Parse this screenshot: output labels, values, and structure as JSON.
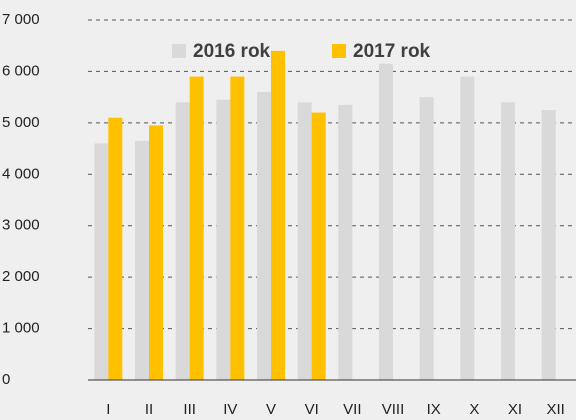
{
  "chart_data": {
    "type": "bar",
    "categories": [
      "I",
      "II",
      "III",
      "IV",
      "V",
      "VI",
      "VII",
      "VIII",
      "IX",
      "X",
      "XI",
      "XII"
    ],
    "series": [
      {
        "name": "2016 rok",
        "color": "#d9d9d9",
        "values": [
          4600,
          4650,
          5400,
          5450,
          5600,
          5400,
          5350,
          6150,
          5500,
          5900,
          5400,
          5250
        ]
      },
      {
        "name": "2017 rok",
        "color": "#ffc000",
        "values": [
          5100,
          4950,
          5900,
          5900,
          6400,
          5200,
          null,
          null,
          null,
          null,
          null,
          null
        ]
      }
    ],
    "ylim": [
      0,
      7000
    ],
    "yticks": [
      0,
      {
        "value": 1000,
        "label": "1 000"
      },
      {
        "value": 2000,
        "label": "2 000"
      },
      {
        "value": 3000,
        "label": "3 000"
      },
      {
        "value": 4000,
        "label": "4 000"
      },
      {
        "value": 5000,
        "label": "5 000"
      },
      {
        "value": 6000,
        "label": "6 000"
      },
      {
        "value": 7000,
        "label": "7 000"
      }
    ],
    "grid": true,
    "legend": "top"
  }
}
